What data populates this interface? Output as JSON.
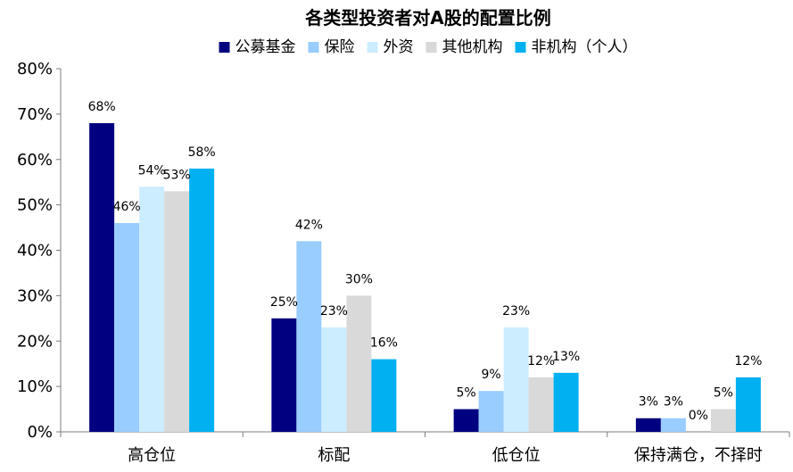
{
  "chart_data": {
    "type": "bar",
    "title": "各类型投资者对A股的配置比例",
    "categories": [
      "高仓位",
      "标配",
      "低仓位",
      "保持满仓，不择时"
    ],
    "series": [
      {
        "name": "公募基金",
        "color": "#000080",
        "values": [
          68,
          25,
          5,
          3
        ],
        "labels": [
          "68%",
          "25%",
          "5%",
          "3%"
        ]
      },
      {
        "name": "保险",
        "color": "#99CCFF",
        "values": [
          46,
          42,
          9,
          3
        ],
        "labels": [
          "46%",
          "42%",
          "9%",
          "3%"
        ]
      },
      {
        "name": "外资",
        "color": "#CCECFF",
        "values": [
          54,
          23,
          23,
          0
        ],
        "labels": [
          "54%",
          "23%",
          "23%",
          "0%"
        ]
      },
      {
        "name": "其他机构",
        "color": "#D9D9D9",
        "values": [
          53,
          30,
          12,
          5
        ],
        "labels": [
          "53%",
          "30%",
          "12%",
          "5%"
        ]
      },
      {
        "name": "非机构（个人）",
        "color": "#00B0F0",
        "values": [
          58,
          16,
          13,
          12
        ],
        "labels": [
          "58%",
          "16%",
          "13%",
          "12%"
        ]
      }
    ],
    "ylim": [
      0,
      80
    ],
    "yticks": [
      0,
      10,
      20,
      30,
      40,
      50,
      60,
      70,
      80
    ],
    "ytick_labels": [
      "0%",
      "10%",
      "20%",
      "30%",
      "40%",
      "50%",
      "60%",
      "70%",
      "80%"
    ],
    "legend_position": "top",
    "grid": false
  }
}
